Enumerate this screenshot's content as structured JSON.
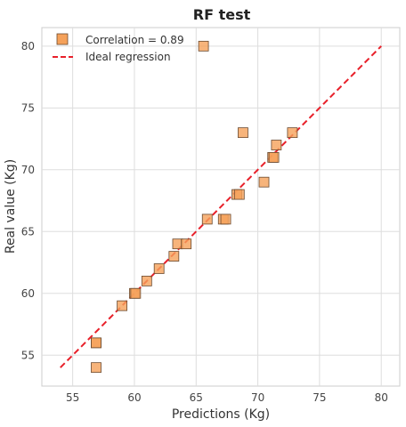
{
  "chart_data": {
    "type": "scatter",
    "title": "RF test",
    "xlabel": "Predictions (Kg)",
    "ylabel": "Real value (Kg)",
    "xlim": [
      52.5,
      81.5
    ],
    "ylim": [
      52.5,
      81.5
    ],
    "xticks": [
      55,
      60,
      65,
      70,
      75,
      80
    ],
    "yticks": [
      55,
      60,
      65,
      70,
      75,
      80
    ],
    "grid": true,
    "legend_position": "top-left",
    "series": [
      {
        "name": "Correlation = 0.89",
        "kind": "scatter",
        "marker": "square",
        "color": "#f5a15a",
        "edge_color": "#6b4a2f",
        "points": [
          {
            "x": 56.9,
            "y": 54.0
          },
          {
            "x": 56.9,
            "y": 56.0
          },
          {
            "x": 56.9,
            "y": 56.0
          },
          {
            "x": 59.0,
            "y": 59.0
          },
          {
            "x": 60.0,
            "y": 60.0
          },
          {
            "x": 60.1,
            "y": 60.0
          },
          {
            "x": 61.0,
            "y": 61.0
          },
          {
            "x": 62.0,
            "y": 62.0
          },
          {
            "x": 63.2,
            "y": 63.0
          },
          {
            "x": 63.5,
            "y": 64.0
          },
          {
            "x": 64.2,
            "y": 64.0
          },
          {
            "x": 65.6,
            "y": 80.0
          },
          {
            "x": 65.9,
            "y": 66.0
          },
          {
            "x": 67.2,
            "y": 66.0
          },
          {
            "x": 67.4,
            "y": 66.0
          },
          {
            "x": 68.3,
            "y": 68.0
          },
          {
            "x": 68.5,
            "y": 68.0
          },
          {
            "x": 68.8,
            "y": 73.0
          },
          {
            "x": 70.5,
            "y": 69.0
          },
          {
            "x": 71.2,
            "y": 71.0
          },
          {
            "x": 71.3,
            "y": 71.0
          },
          {
            "x": 71.5,
            "y": 72.0
          },
          {
            "x": 72.8,
            "y": 73.0
          }
        ]
      },
      {
        "name": "Ideal regression",
        "kind": "line",
        "style": "dashed",
        "color": "#e8202a",
        "points": [
          {
            "x": 54,
            "y": 54
          },
          {
            "x": 80,
            "y": 80
          }
        ]
      }
    ]
  }
}
